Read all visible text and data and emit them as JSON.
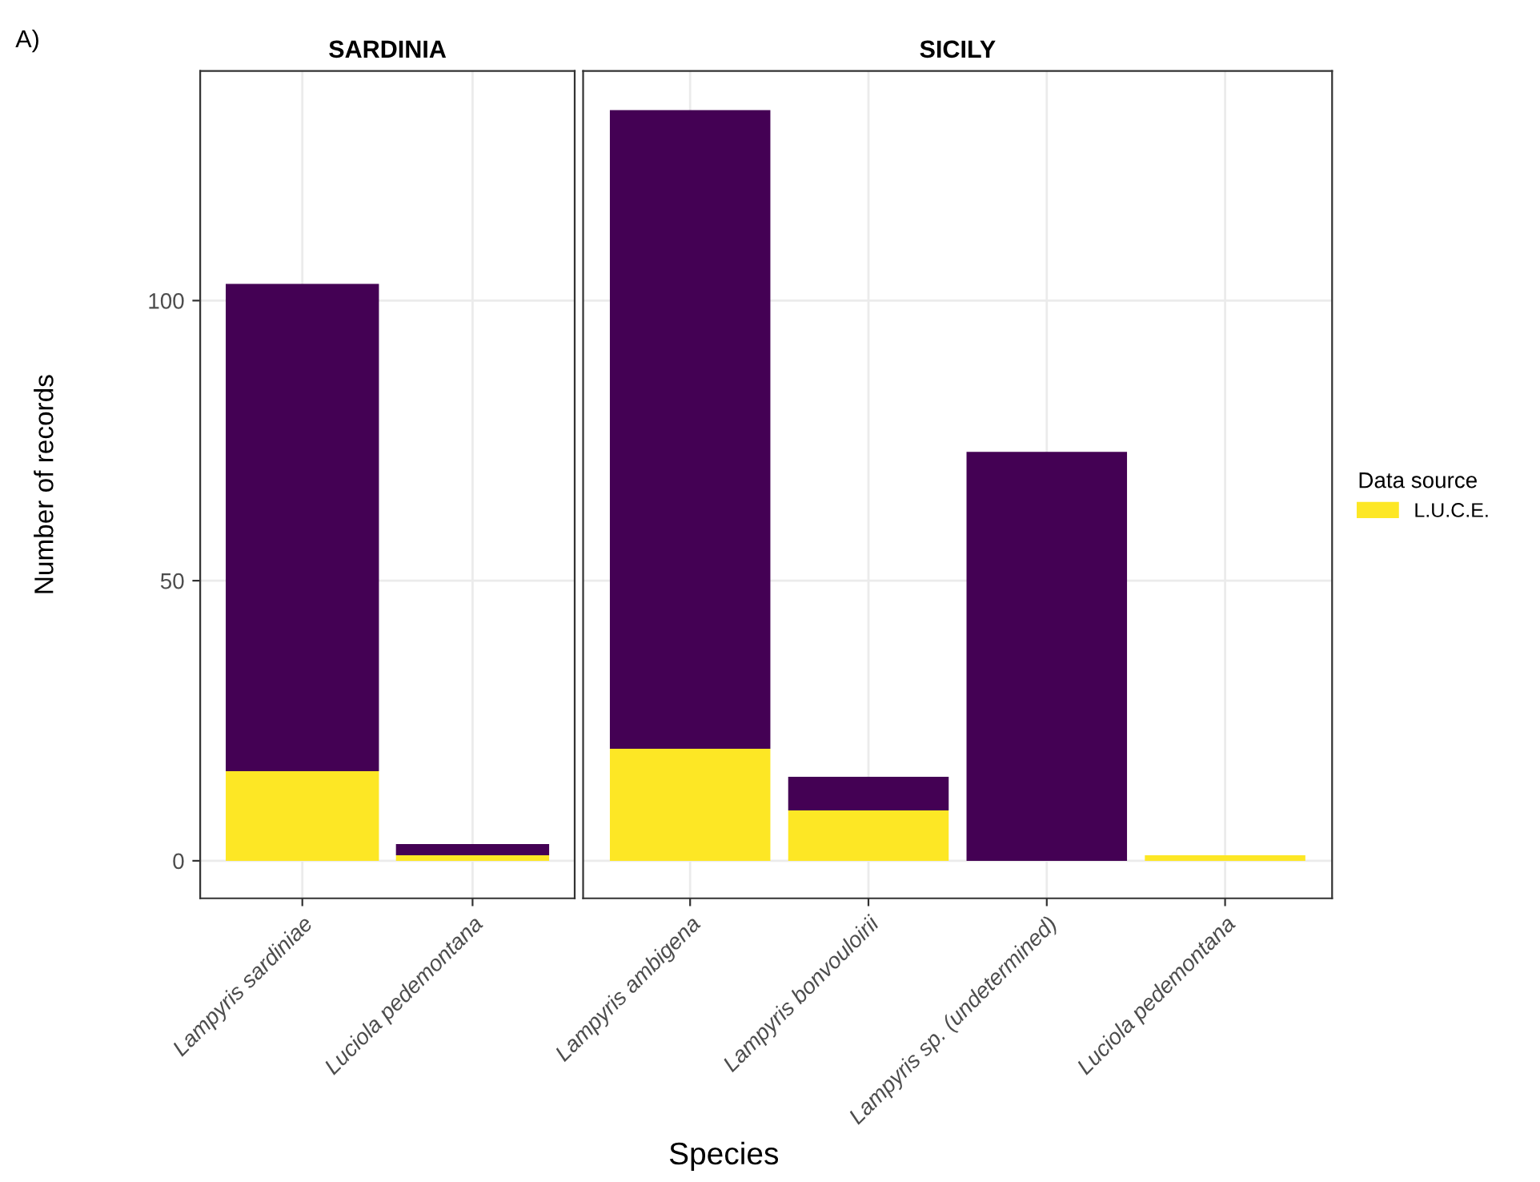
{
  "chart_data": [
    {
      "type": "bar",
      "stacked": true,
      "title": "SARDINIA",
      "xlabel": "Species",
      "ylabel": "Number of records",
      "legend_title": "Data source",
      "legend": "right",
      "grid": true,
      "annotations": [
        "A)"
      ],
      "categories": [
        "Lampyris sardiniae",
        "Luciola pedemontana"
      ],
      "ylim": [
        -6.7,
        141
      ],
      "yticks": [
        0,
        50,
        100
      ],
      "series": [
        {
          "name": "L.U.C.E.",
          "color": "#fde725",
          "values": [
            16,
            1
          ]
        },
        {
          "color": "#440154",
          "values": [
            87,
            2
          ]
        }
      ]
    },
    {
      "type": "bar",
      "stacked": true,
      "title": "SICILY",
      "grid": true,
      "tick_labels": "x",
      "categories": [
        "Lampyris ambigena",
        "Lampyris bonvouloirii",
        "Lampyris sp. (undetermined)",
        "Luciola pedemontana"
      ],
      "ylim": [
        -6.7,
        141
      ],
      "yticks": [
        0,
        50,
        100
      ],
      "series": [
        {
          "name": "L.U.C.E.",
          "color": "#fde725",
          "values": [
            20,
            9,
            0,
            1
          ]
        },
        {
          "color": "#440154",
          "values": [
            114,
            6,
            73,
            0
          ]
        }
      ]
    }
  ]
}
